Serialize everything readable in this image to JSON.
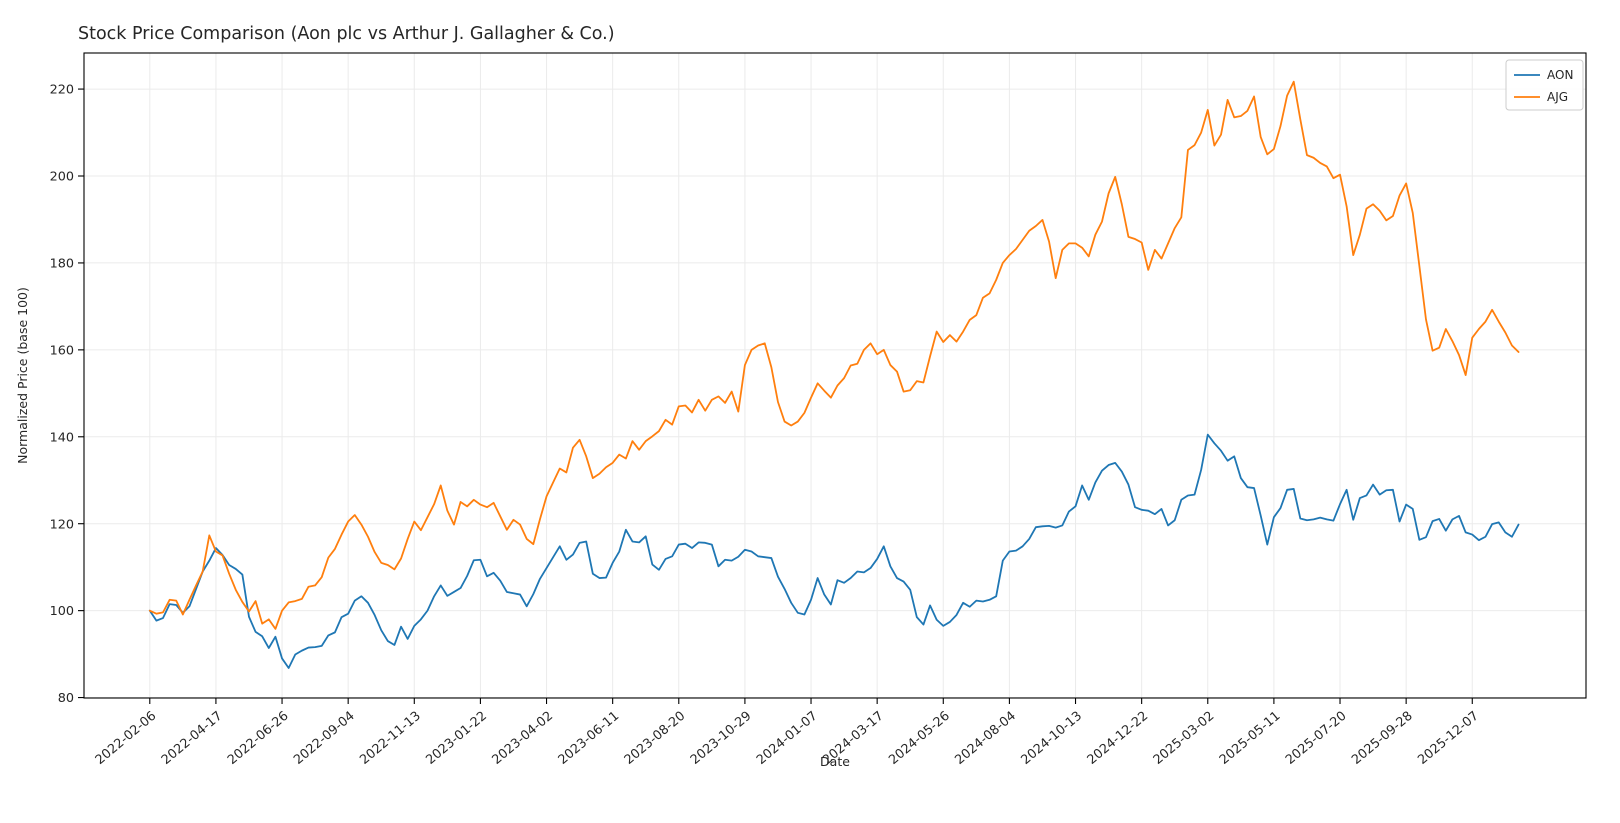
{
  "chart_data": {
    "type": "line",
    "title": "Stock Price Comparison (Aon plc vs Arthur J. Gallagher & Co.)",
    "xlabel": "Date",
    "ylabel": "Normalized Price (base 100)",
    "grid": true,
    "legend_position": "upper right",
    "ylim": [
      79.9,
      228.3
    ],
    "yticks": [
      80,
      100,
      120,
      140,
      160,
      180,
      200,
      220
    ],
    "x_range_weeks": [
      -9.95,
      217.2
    ],
    "x_tick_weeks": [
      0,
      10,
      20,
      30,
      40,
      50,
      60,
      70,
      80,
      90,
      100,
      110,
      120,
      130,
      140,
      150,
      160,
      170,
      180,
      190,
      200
    ],
    "x_tick_labels": [
      "2022-02-06",
      "2022-04-17",
      "2022-06-26",
      "2022-09-04",
      "2022-11-13",
      "2023-01-22",
      "2023-04-02",
      "2023-06-11",
      "2023-08-20",
      "2023-10-29",
      "2024-01-07",
      "2024-03-17",
      "2024-05-26",
      "2024-08-04",
      "2024-10-13",
      "2024-12-22",
      "2025-03-02",
      "2025-05-11",
      "2025-07-20",
      "2025-09-28",
      "2025-12-07"
    ],
    "series": [
      {
        "name": "AON",
        "color": "#1f77b4",
        "values": [
          100,
          97.7,
          98.3,
          101.5,
          101.3,
          99.5,
          101,
          105,
          109,
          111.5,
          114.4,
          112.8,
          110.5,
          109.6,
          108.3,
          98.6,
          95.1,
          94.1,
          91.4,
          94,
          89,
          86.8,
          89.9,
          90.8,
          91.5,
          91.6,
          91.9,
          94.3,
          95,
          98.5,
          99.3,
          102.3,
          103.3,
          101.8,
          99,
          95.5,
          93,
          92.1,
          96.3,
          93.5,
          96.5,
          98,
          100,
          103.3,
          105.8,
          103.4,
          104.3,
          105.2,
          108,
          111.6,
          111.7,
          107.9,
          108.7,
          106.9,
          104.3,
          104,
          103.7,
          101,
          103.8,
          107.3,
          109.8,
          112.3,
          114.8,
          111.7,
          112.9,
          115.6,
          115.9,
          108.5,
          107.5,
          107.6,
          111,
          113.6,
          118.6,
          115.9,
          115.7,
          117.1,
          110.6,
          109.4,
          111.9,
          112.5,
          115.2,
          115.4,
          114.4,
          115.7,
          115.6,
          115.2,
          110.2,
          111.7,
          111.5,
          112.4,
          114,
          113.6,
          112.5,
          112.3,
          112.1,
          107.8,
          105,
          101.8,
          99.5,
          99.1,
          102.5,
          107.5,
          103.7,
          101.4,
          107,
          106.4,
          107.5,
          109,
          108.8,
          109.8,
          111.9,
          114.8,
          110.2,
          107.5,
          106.7,
          104.8,
          98.5,
          96.8,
          101.2,
          97.9,
          96.5,
          97.4,
          99,
          101.8,
          100.9,
          102.3,
          102.1,
          102.5,
          103.3,
          111.5,
          113.6,
          113.8,
          114.8,
          116.5,
          119.2,
          119.4,
          119.5,
          119.1,
          119.6,
          122.8,
          124,
          128.8,
          125.5,
          129.5,
          132.2,
          133.5,
          134,
          132,
          129,
          123.8,
          123.2,
          123,
          122.2,
          123.4,
          119.6,
          120.8,
          125.5,
          126.5,
          126.7,
          132.4,
          140.5,
          138.5,
          136.8,
          134.5,
          135.5,
          130.5,
          128.4,
          128.2,
          121.9,
          115.2,
          121.5,
          123.6,
          127.8,
          128,
          121.2,
          120.8,
          121,
          121.4,
          121,
          120.7,
          124.5,
          127.8,
          120.9,
          125.9,
          126.5,
          129,
          126.7,
          127.7,
          127.8,
          120.5,
          124.4,
          123.4,
          116.3,
          116.9,
          120.6,
          121.1,
          118.4,
          121,
          121.8,
          118,
          117.5,
          116.2,
          117,
          119.9,
          120.3,
          118,
          117,
          119.8
        ]
      },
      {
        "name": "AJG",
        "color": "#ff7f0e",
        "values": [
          100,
          99.3,
          99.6,
          102.5,
          102.3,
          99.1,
          102.5,
          105.8,
          109,
          117.3,
          113.6,
          112.7,
          108.5,
          104.8,
          102,
          99.8,
          102.2,
          97,
          98,
          95.8,
          100,
          101.9,
          102.2,
          102.7,
          105.5,
          105.8,
          107.7,
          112.2,
          114.2,
          117.5,
          120.5,
          122,
          119.8,
          117,
          113.5,
          111,
          110.5,
          109.5,
          112,
          116.5,
          120.5,
          118.5,
          121.5,
          124.5,
          128.8,
          123,
          119.8,
          125,
          124,
          125.5,
          124.4,
          123.8,
          124.8,
          121.7,
          118.6,
          120.9,
          119.8,
          116.5,
          115.3,
          121,
          126.3,
          129.5,
          132.7,
          131.8,
          137.5,
          139.3,
          135.5,
          130.5,
          131.5,
          133,
          134,
          135.9,
          135,
          139,
          137,
          139,
          140.1,
          141.3,
          143.9,
          142.8,
          147,
          147.2,
          145.6,
          148.5,
          146,
          148.5,
          149.3,
          147.8,
          150.4,
          145.8,
          156.5,
          160,
          161,
          161.5,
          156,
          148,
          143.5,
          142.6,
          143.5,
          145.5,
          149,
          152.3,
          150.6,
          149,
          151.8,
          153.5,
          156.4,
          156.8,
          160,
          161.5,
          159,
          160,
          156.5,
          155,
          150.4,
          150.7,
          152.8,
          152.5,
          158.5,
          164.2,
          161.8,
          163.4,
          161.9,
          164.2,
          166.9,
          168,
          172,
          173,
          176.1,
          180,
          181.8,
          183.2,
          185.3,
          187.4,
          188.5,
          189.9,
          184.9,
          176.5,
          183,
          184.5,
          184.5,
          183.5,
          181.5,
          186.5,
          189.5,
          196,
          199.8,
          193.5,
          186,
          185.5,
          184.7,
          178.4,
          183,
          181,
          184.5,
          188,
          190.5,
          206,
          207.1,
          210,
          215.2,
          207,
          209.5,
          217.5,
          213.5,
          213.8,
          215,
          218.3,
          209,
          205,
          206.2,
          211.5,
          218.5,
          221.7,
          213,
          204.8,
          204.2,
          203,
          202.2,
          199.5,
          200.3,
          193,
          181.8,
          186.5,
          192.5,
          193.5,
          192,
          189.8,
          190.8,
          195.5,
          198.3,
          191.5,
          179.3,
          167,
          159.8,
          160.5,
          164.8,
          162,
          158.8,
          154.2,
          162.8,
          164.8,
          166.5,
          169.2,
          166.5,
          164,
          161,
          159.5
        ]
      }
    ]
  }
}
